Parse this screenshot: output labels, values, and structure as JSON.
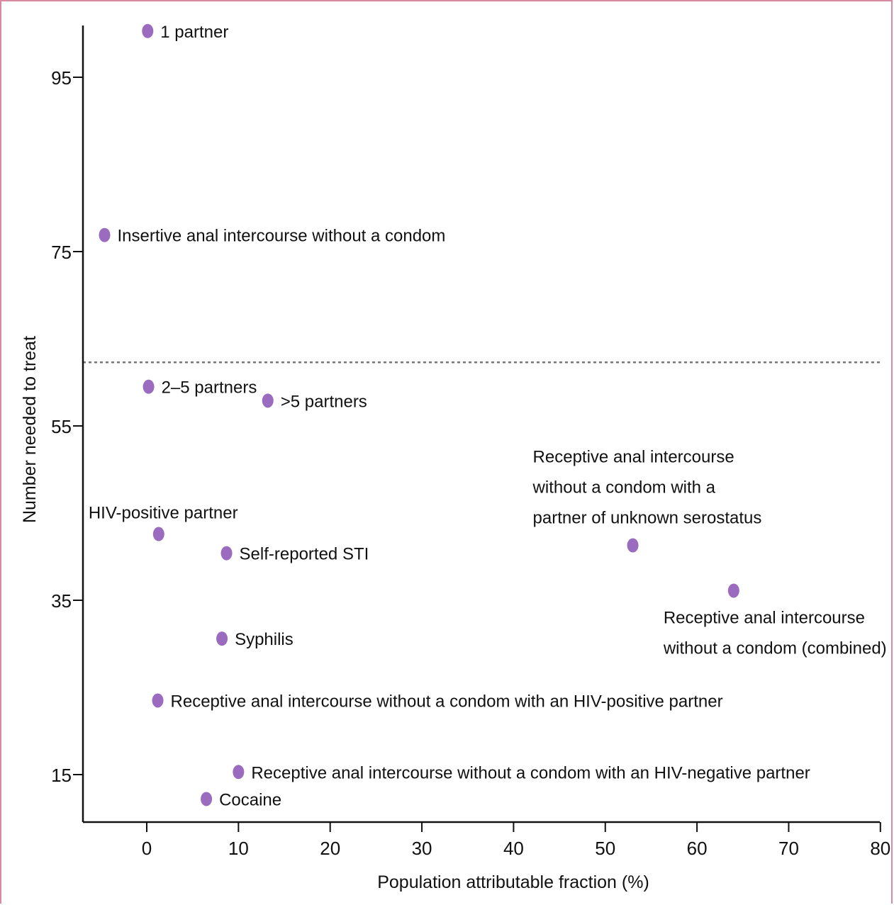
{
  "chart_data": {
    "type": "scatter",
    "xlabel": "Population attributable fraction (%)",
    "ylabel": "Number needed to treat",
    "xlim": [
      -7,
      80
    ],
    "ylim": [
      10,
      100
    ],
    "x_ticks": [
      0,
      10,
      20,
      30,
      40,
      50,
      60,
      70,
      80
    ],
    "y_ticks": [
      15,
      35,
      55,
      75,
      95
    ],
    "reference_line": {
      "y": 62.3,
      "style": "dotted"
    },
    "point_color": "#9b6bbf",
    "points": [
      {
        "x": 0.1,
        "y": 100.3,
        "label": [
          "1 partner"
        ],
        "label_pos": "right"
      },
      {
        "x": -4.6,
        "y": 76.9,
        "label": [
          "Insertive anal intercourse without a condom"
        ],
        "label_pos": "right"
      },
      {
        "x": 0.2,
        "y": 59.5,
        "label": [
          "2–5 partners"
        ],
        "label_pos": "right"
      },
      {
        "x": 13.2,
        "y": 57.9,
        "label": [
          ">5 partners"
        ],
        "label_pos": "right"
      },
      {
        "x": 53.0,
        "y": 41.3,
        "label": [
          "Receptive anal intercourse",
          "without a condom with a",
          "partner of unknown serostatus"
        ],
        "label_pos": "above-left"
      },
      {
        "x": 64.0,
        "y": 36.1,
        "label": [
          "Receptive anal intercourse",
          "without a condom (combined)"
        ],
        "label_pos": "below"
      },
      {
        "x": 1.3,
        "y": 42.6,
        "label": [
          "HIV-positive partner"
        ],
        "label_pos": "above"
      },
      {
        "x": 8.7,
        "y": 40.4,
        "label": [
          "Self-reported STI"
        ],
        "label_pos": "right"
      },
      {
        "x": 8.2,
        "y": 30.6,
        "label": [
          "Syphilis"
        ],
        "label_pos": "right"
      },
      {
        "x": 1.2,
        "y": 23.5,
        "label": [
          "Receptive anal intercourse without a condom with an HIV-positive partner"
        ],
        "label_pos": "right"
      },
      {
        "x": 10.0,
        "y": 15.3,
        "label": [
          "Receptive anal intercourse without a condom with an HIV-negative partner"
        ],
        "label_pos": "right"
      },
      {
        "x": 6.5,
        "y": 12.2,
        "label": [
          "Cocaine"
        ],
        "label_pos": "right"
      }
    ]
  }
}
